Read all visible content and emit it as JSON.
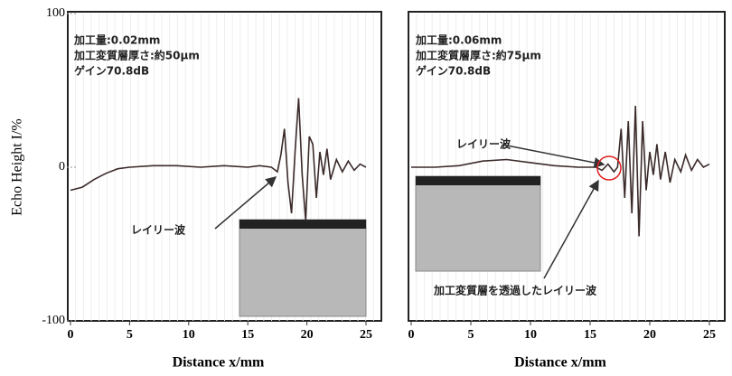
{
  "chart_data": [
    {
      "type": "line",
      "ylabel": "Echo Height I/%",
      "xlabel": "Distance x/mm",
      "xlim": [
        0,
        25
      ],
      "ylim": [
        -100,
        100
      ],
      "xticks": [
        0,
        5,
        10,
        15,
        20,
        25
      ],
      "yticks": [
        100,
        0,
        -100
      ],
      "color": "#3b2a2a",
      "x": [
        0,
        1,
        2,
        3,
        4,
        5,
        7,
        9,
        11,
        13,
        15,
        16,
        17,
        17.5,
        17.8,
        18.1,
        18.4,
        18.7,
        19,
        19.3,
        19.6,
        19.9,
        20.2,
        20.5,
        20.8,
        21.1,
        21.4,
        21.7,
        22,
        22.5,
        23,
        23.5,
        24,
        24.5,
        25
      ],
      "values": [
        -15,
        -13,
        -8,
        -4,
        -1,
        0,
        1,
        1,
        0,
        1,
        0,
        1,
        0,
        -3,
        8,
        25,
        -10,
        -30,
        10,
        45,
        -5,
        -35,
        20,
        15,
        -20,
        10,
        -5,
        12,
        -8,
        5,
        -3,
        4,
        -2,
        2,
        0
      ],
      "annotations": [
        "加工量:0.02mm",
        "加工変質層厚さ:約50μm",
        "ゲイン70.8dB",
        "レイリー波"
      ]
    },
    {
      "type": "line",
      "xlabel": "Distance x/mm",
      "xlim": [
        0,
        25
      ],
      "ylim": [
        -100,
        100
      ],
      "xticks": [
        0,
        5,
        10,
        15,
        20,
        25
      ],
      "color": "#3b2a2a",
      "x": [
        0,
        2,
        4,
        6,
        8,
        10,
        12,
        14,
        15.5,
        16,
        16.5,
        17,
        17.3,
        17.6,
        17.9,
        18.2,
        18.5,
        18.8,
        19.1,
        19.4,
        19.7,
        20,
        20.3,
        20.6,
        20.9,
        21.3,
        21.7,
        22.1,
        22.6,
        23,
        23.5,
        24,
        24.5,
        25
      ],
      "values": [
        0,
        0,
        1,
        4,
        5,
        3,
        1,
        0,
        0,
        -2,
        2,
        -3,
        0,
        25,
        -20,
        30,
        -30,
        40,
        -45,
        30,
        -15,
        10,
        -5,
        15,
        -8,
        10,
        -10,
        5,
        -3,
        8,
        -2,
        5,
        0,
        2
      ],
      "annotations": [
        "加工量:0.06mm",
        "加工変質層厚さ:約75μm",
        "ゲイン70.8dB",
        "レイリー波",
        "加工変質層を透過したレイリー波"
      ]
    }
  ]
}
